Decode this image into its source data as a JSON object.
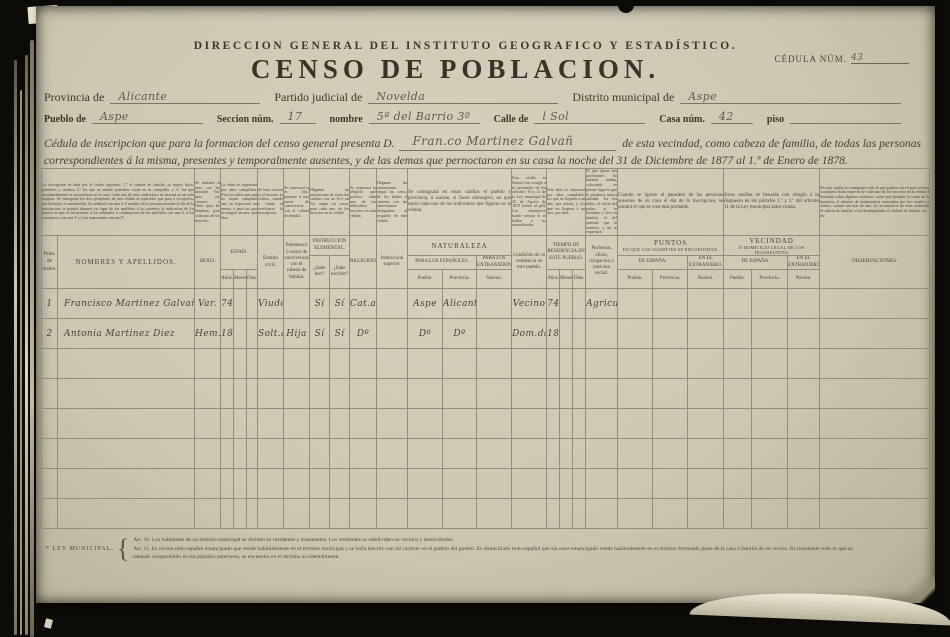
{
  "header": {
    "agency": "DIRECCION GENERAL DEL INSTITUTO GEOGRAFICO Y ESTADÍSTICO.",
    "title": "CENSO DE POBLACION.",
    "cedula_label": "CÉDULA NÚM.",
    "cedula_value": "43"
  },
  "form": {
    "provincia_label": "Provincia de",
    "provincia_value": "Alicante",
    "partido_label": "Partido judicial de",
    "partido_value": "Novelda",
    "distrito_label": "Distrito municipal de",
    "distrito_value": "Aspe",
    "pueblo_label": "Pueblo de",
    "pueblo_value": "Aspe",
    "seccion_label": "Seccion núm.",
    "seccion_value": "17",
    "nombre_label": "nombre",
    "nombre_value": "5ª del Barrio 3º",
    "calle_label": "Calle de",
    "calle_value": "l Sol",
    "casa_label": "Casa núm.",
    "casa_value": "42",
    "piso_label": "piso",
    "piso_value": ""
  },
  "declaration": {
    "pre": "Cédula de inscripcion que para la formacion del censo general presenta D.",
    "name": "Fran.co Martinez Galvañ",
    "post": "de esta vecindad, como cabeza de familia, de todas las personas",
    "line2": "correspondientes á la misma, presentes y temporalmente ausentes, y de las demas que pernoctaron en su casa la noche del 31 de Diciembre de 1877 al 1.º de Enero de 1878."
  },
  "table": {
    "instructions": [
      "La inscripcion se hará por el órden siguiente: 1.º el cabeza de familia, su mujer, hijos, parientes y criados; 2.º los que no siendo parientes vivan en su compañía, y 3.º los que accidentalmente se encontráran en la casa. Cada uno de estos individuos se anotará en un solo renglon. Se entregarán los dos ejemplares de esta cédula al repartidor que pase á recogerlos, sin doblarlos ni mancharlos. Se señalará con una A el nombre de la persona ausente el dia de la inscripcion; se pondrá despues en lugar de los apellidos á los ausentes la indicacion de los puntos en que se encuentran; á los señalados á continuacion de los apellidos con una A, á los extranjeros con una E y á los transeuntes con una T.",
      "Se indicará el sexo con las iniciales Var. para los varones y Hem. para las hembras, para cada uno de los inscritos.",
      "La edad se expresará por años cumplidos. Para los niños que aun no hayan cumplido uno se expresará en meses, y para los que no tengan un mes, por dias.",
      "Se hará constar si el inscrito es soltero, casado ó viudo al verificarse la inscripcion.",
      "Se expresará si es hijo, pariente ú otra razon de convivencia con el cabeza de familia.",
      "Háganse las anotaciones de estas dos casillas con un Sí ó un No, segun los casos, para cada uno de los inscritos en la cédula.",
      "Se expresará la religion que profesa cada uno de los individuos inscritos en esta cédula.",
      "Háganse las anotaciones, segun los casos, de los títulos ó carreras con las abreviaturas designadas al respaldo de esta cédula.",
      "Se consignará en estas casillas el pueblo y provincia, ó nacion, si fuese extranjero, en que nació cada uno de los individuos que figuran en la cédula.",
      "Esta casilla se llenará con arreglo á lo prevenido en los artículos 10 y 11 de la Ley municipal de 20 de Agosto de 1870 (véase al pié). Los extranjeros harán constar si se hallan ó no naturalizados.",
      "Este dato se expresará por años cumplidos; los que no lleguen á un año, por meses, y los que no lleguen á un mes, por dias.",
      "El que ejerza dos profesiones las anotará ambas, colocando en primer lugar la que le produzca mayor utilidad. En los niños, el oficio del padre; si es huérfano y vive en familia, el del pariente que lo sostiene, y así se expresará.",
      "Cuando se ignore el paradero de las personas ausentes de su casa el dia de la inscripcion, se pondrá el que se crea mas probable.",
      "Estas casillas se llenarán con arreglo á lo dispuesto en los párrafos 1.º y 2.º del artículo 11 de la Ley municipal ántes citada.",
      "En esta casilla se consignará todo lo que pudiera servir para aclarar cualquiera duda respecto de cada uno de los inscritos en la cédula é ilustrarla sobre algunos extremos, como por ejemplo, la causa de la ausencia, el número de matrimonios contraidos por los casados y viudos, cuando sea mas de uno, la circunstancia de estar ordenado el cabeza de familia, si ha desempeñado el cuidado de familia, etc., etc."
    ],
    "headers": {
      "num": "Núm. de órden.",
      "nombres": "NOMBRES Y APELLIDOS.",
      "sexo": "SEXO.",
      "edad": "EDAD.",
      "anos": "Años.",
      "meses": "Meses.",
      "dias": "Dias.",
      "estado": "Estado civil.",
      "parentesco": "Parentesco ó razon de convivencia con el cabeza de familia.",
      "instruccion": "INSTRUCCION ELEMENTAL.",
      "leer": "¿Sabe leer?",
      "escribir": "¿Sabe escribir?",
      "religion": "RELIGION.",
      "superior": "Instruccion superior.",
      "naturaleza": "NATURALEZA",
      "espanoles": "PARA LOS ESPAÑOLES.",
      "extranjeros": "PARA LOS EXTRANJEROS.",
      "pueblo": "Pueblo.",
      "provincia": "Provincia.",
      "nacion": "Nacion.",
      "condicion": "Condicion de su residencia en este pueblo.",
      "tiempo": "TIEMPO DE RESIDENCIA EN ESTE PUEBLO.",
      "profesion": "Profesion, oficio, ocupacion ó posicion social.",
      "puntos_title": "PUNTOS",
      "puntos_sub": "EN QUE LOS AUSENTES SE ENCUENTRAN.",
      "de_espana": "DE ESPAÑA.",
      "en_extranjero": "EN EL EXTRANJERO.",
      "vecindad_title": "VECINDAD",
      "vecindad_sub": "Ó DOMICILIO LEGAL DE LOS TRANSEUNTES.",
      "observaciones": "OBSERVACIONES."
    },
    "rows": [
      {
        "cells": [
          "1",
          "Francisco Martinez Galvañ",
          "Var.",
          "74",
          "",
          "",
          "Viudo",
          "",
          "Sí",
          "Sí",
          "Cat.a",
          "",
          "Aspe",
          "Alicante",
          "",
          "Vecino",
          "74",
          "",
          "",
          "Agricul.or",
          "",
          "",
          "",
          "",
          "",
          "",
          ""
        ]
      },
      {
        "cells": [
          "2",
          "Antonia Martinez Diez",
          "Hem.",
          "18",
          "",
          "",
          "Solt.a",
          "Hija",
          "Sí",
          "Sí",
          "Dº",
          "",
          "Dº",
          "Dº",
          "",
          "Dom.da",
          "18",
          "",
          "",
          "",
          "",
          "",
          "",
          "",
          "",
          "",
          ""
        ]
      }
    ],
    "empty_row_count": 6
  },
  "footer": {
    "label": "* LEY MUNICIPAL.",
    "brace": "{",
    "art10": "Art. 10.  Los habitantes de un término municipal se dividen en residentes y transeuntes. Los residentes se subdividen en vecinos y domiciliados.",
    "art11": "Art. 11.  Es vecino todo español emancipado que reside habitualmente en el término municipal y se halla inscrito con tal carácter en el padron del pueblo. Es domiciliado todo español que sin estar emancipado reside habitualmente en el término formando parte de la casa ó familia de un vecino. Es transeunte todo el que no",
    "art11_cont": "estando comprendido en los párrafos anteriores, se encuentra en el término accidentalmente."
  }
}
